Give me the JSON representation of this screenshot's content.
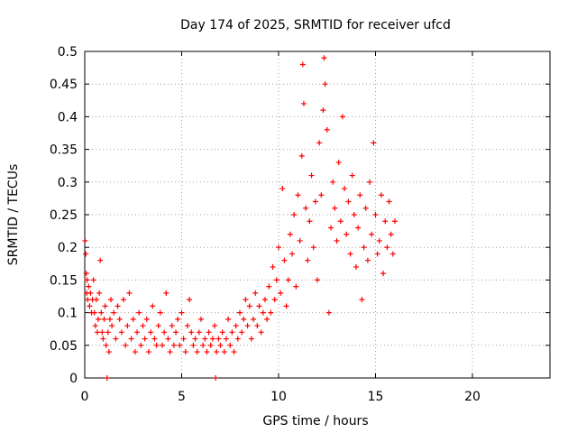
{
  "chart_data": {
    "type": "scatter",
    "title": "Day 174 of 2025, SRMTID for receiver ufcd",
    "xlabel": "GPS time / hours",
    "ylabel": "SRMTID / TECUs",
    "xlim": [
      0,
      24
    ],
    "ylim": [
      0,
      0.5
    ],
    "xticks": [
      0,
      5,
      10,
      15,
      20
    ],
    "xtick_labels": [
      "0",
      "5",
      "10",
      "15",
      "20"
    ],
    "yticks": [
      0,
      0.05,
      0.1,
      0.15,
      0.2,
      0.25,
      0.3,
      0.35,
      0.4,
      0.45,
      0.5
    ],
    "ytick_labels": [
      "0",
      "0.05",
      "0.1",
      "0.15",
      "0.2",
      "0.25",
      "0.3",
      "0.35",
      "0.4",
      "0.45",
      "0.5"
    ],
    "grid": true,
    "marker": "+",
    "color": "#ff0000",
    "series": [
      {
        "name": "SRMTID",
        "points": [
          [
            0.02,
            0.21
          ],
          [
            0.05,
            0.19
          ],
          [
            0.08,
            0.16
          ],
          [
            0.1,
            0.13
          ],
          [
            0.12,
            0.15
          ],
          [
            0.15,
            0.12
          ],
          [
            0.2,
            0.14
          ],
          [
            0.25,
            0.11
          ],
          [
            0.3,
            0.13
          ],
          [
            0.35,
            0.1
          ],
          [
            0.4,
            0.12
          ],
          [
            0.45,
            0.15
          ],
          [
            0.5,
            0.1
          ],
          [
            0.55,
            0.08
          ],
          [
            0.6,
            0.12
          ],
          [
            0.65,
            0.07
          ],
          [
            0.7,
            0.09
          ],
          [
            0.75,
            0.13
          ],
          [
            0.8,
            0.18
          ],
          [
            0.85,
            0.1
          ],
          [
            0.9,
            0.07
          ],
          [
            0.95,
            0.06
          ],
          [
            1.0,
            0.09
          ],
          [
            1.05,
            0.11
          ],
          [
            1.1,
            0.05
          ],
          [
            1.15,
            0.0
          ],
          [
            1.2,
            0.07
          ],
          [
            1.25,
            0.04
          ],
          [
            1.3,
            0.09
          ],
          [
            1.35,
            0.12
          ],
          [
            1.4,
            0.08
          ],
          [
            1.5,
            0.1
          ],
          [
            1.6,
            0.06
          ],
          [
            1.7,
            0.11
          ],
          [
            1.8,
            0.09
          ],
          [
            1.9,
            0.07
          ],
          [
            2.0,
            0.12
          ],
          [
            2.1,
            0.05
          ],
          [
            2.2,
            0.08
          ],
          [
            2.3,
            0.13
          ],
          [
            2.4,
            0.06
          ],
          [
            2.5,
            0.09
          ],
          [
            2.6,
            0.04
          ],
          [
            2.7,
            0.07
          ],
          [
            2.8,
            0.1
          ],
          [
            2.9,
            0.05
          ],
          [
            3.0,
            0.08
          ],
          [
            3.1,
            0.06
          ],
          [
            3.2,
            0.09
          ],
          [
            3.3,
            0.04
          ],
          [
            3.4,
            0.07
          ],
          [
            3.5,
            0.11
          ],
          [
            3.6,
            0.06
          ],
          [
            3.7,
            0.05
          ],
          [
            3.8,
            0.08
          ],
          [
            3.9,
            0.1
          ],
          [
            4.0,
            0.05
          ],
          [
            4.1,
            0.07
          ],
          [
            4.2,
            0.13
          ],
          [
            4.3,
            0.06
          ],
          [
            4.4,
            0.04
          ],
          [
            4.5,
            0.08
          ],
          [
            4.6,
            0.05
          ],
          [
            4.7,
            0.07
          ],
          [
            4.8,
            0.09
          ],
          [
            4.9,
            0.05
          ],
          [
            5.0,
            0.1
          ],
          [
            5.1,
            0.06
          ],
          [
            5.2,
            0.04
          ],
          [
            5.3,
            0.08
          ],
          [
            5.4,
            0.12
          ],
          [
            5.5,
            0.07
          ],
          [
            5.6,
            0.05
          ],
          [
            5.7,
            0.06
          ],
          [
            5.8,
            0.04
          ],
          [
            5.9,
            0.07
          ],
          [
            6.0,
            0.09
          ],
          [
            6.1,
            0.05
          ],
          [
            6.2,
            0.06
          ],
          [
            6.3,
            0.04
          ],
          [
            6.4,
            0.07
          ],
          [
            6.5,
            0.05
          ],
          [
            6.6,
            0.06
          ],
          [
            6.7,
            0.08
          ],
          [
            6.75,
            0.0
          ],
          [
            6.8,
            0.04
          ],
          [
            6.9,
            0.06
          ],
          [
            7.0,
            0.05
          ],
          [
            7.1,
            0.07
          ],
          [
            7.2,
            0.04
          ],
          [
            7.3,
            0.06
          ],
          [
            7.4,
            0.09
          ],
          [
            7.5,
            0.05
          ],
          [
            7.6,
            0.07
          ],
          [
            7.7,
            0.04
          ],
          [
            7.8,
            0.08
          ],
          [
            7.9,
            0.06
          ],
          [
            8.0,
            0.1
          ],
          [
            8.1,
            0.07
          ],
          [
            8.2,
            0.09
          ],
          [
            8.3,
            0.12
          ],
          [
            8.4,
            0.08
          ],
          [
            8.5,
            0.11
          ],
          [
            8.6,
            0.06
          ],
          [
            8.7,
            0.09
          ],
          [
            8.8,
            0.13
          ],
          [
            8.9,
            0.08
          ],
          [
            9.0,
            0.11
          ],
          [
            9.1,
            0.07
          ],
          [
            9.2,
            0.1
          ],
          [
            9.3,
            0.12
          ],
          [
            9.4,
            0.09
          ],
          [
            9.5,
            0.14
          ],
          [
            9.6,
            0.1
          ],
          [
            9.7,
            0.17
          ],
          [
            9.8,
            0.12
          ],
          [
            9.9,
            0.15
          ],
          [
            10.0,
            0.2
          ],
          [
            10.1,
            0.13
          ],
          [
            10.2,
            0.29
          ],
          [
            10.3,
            0.18
          ],
          [
            10.4,
            0.11
          ],
          [
            10.5,
            0.15
          ],
          [
            10.6,
            0.22
          ],
          [
            10.7,
            0.19
          ],
          [
            10.8,
            0.25
          ],
          [
            10.9,
            0.14
          ],
          [
            11.0,
            0.28
          ],
          [
            11.1,
            0.21
          ],
          [
            11.2,
            0.34
          ],
          [
            11.25,
            0.48
          ],
          [
            11.3,
            0.42
          ],
          [
            11.4,
            0.26
          ],
          [
            11.5,
            0.18
          ],
          [
            11.6,
            0.24
          ],
          [
            11.7,
            0.31
          ],
          [
            11.8,
            0.2
          ],
          [
            11.9,
            0.27
          ],
          [
            12.0,
            0.15
          ],
          [
            12.1,
            0.36
          ],
          [
            12.2,
            0.28
          ],
          [
            12.3,
            0.41
          ],
          [
            12.35,
            0.49
          ],
          [
            12.4,
            0.45
          ],
          [
            12.5,
            0.38
          ],
          [
            12.6,
            0.1
          ],
          [
            12.7,
            0.23
          ],
          [
            12.8,
            0.3
          ],
          [
            12.9,
            0.26
          ],
          [
            13.0,
            0.21
          ],
          [
            13.1,
            0.33
          ],
          [
            13.2,
            0.24
          ],
          [
            13.3,
            0.4
          ],
          [
            13.4,
            0.29
          ],
          [
            13.5,
            0.22
          ],
          [
            13.6,
            0.27
          ],
          [
            13.7,
            0.19
          ],
          [
            13.8,
            0.31
          ],
          [
            13.9,
            0.25
          ],
          [
            14.0,
            0.17
          ],
          [
            14.1,
            0.23
          ],
          [
            14.2,
            0.28
          ],
          [
            14.3,
            0.12
          ],
          [
            14.4,
            0.2
          ],
          [
            14.5,
            0.26
          ],
          [
            14.6,
            0.18
          ],
          [
            14.7,
            0.3
          ],
          [
            14.8,
            0.22
          ],
          [
            14.9,
            0.36
          ],
          [
            15.0,
            0.25
          ],
          [
            15.1,
            0.19
          ],
          [
            15.2,
            0.21
          ],
          [
            15.3,
            0.28
          ],
          [
            15.4,
            0.16
          ],
          [
            15.5,
            0.24
          ],
          [
            15.6,
            0.2
          ],
          [
            15.7,
            0.27
          ],
          [
            15.8,
            0.22
          ],
          [
            15.9,
            0.19
          ],
          [
            16.0,
            0.24
          ]
        ]
      }
    ]
  }
}
